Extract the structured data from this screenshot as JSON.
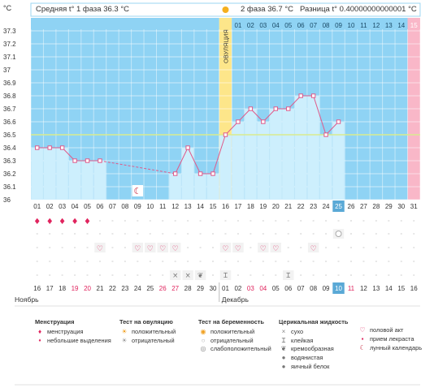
{
  "header": {
    "phase1_label": "Средняя t° 1 фаза",
    "phase1_value": "36.3 °C",
    "phase2_label": "2 фаза",
    "phase2_value": "36.7 °C",
    "diff_label": "Разница t°",
    "diff_value": "0.40000000000001 °C",
    "unit": "°C",
    "ovulation_label": "ОВУЛЯЦИЯ"
  },
  "colors": {
    "phase1_bg": "#8fd3f4",
    "phase2_bg": "#8fd3f4",
    "bar": "#cdeffd",
    "line": "#e05a8a",
    "ovulation": "#fde68a",
    "last_day": "#f9b7c8",
    "coverline": "#d9ec8f",
    "today": "#5aa9d6"
  },
  "chart_data": {
    "type": "line",
    "ylabel": "°C",
    "ylim": [
      36,
      37.3
    ],
    "y_ticks": [
      "37.3",
      "37.2",
      "37.1",
      "37",
      "36.9",
      "36.8",
      "36.7",
      "36.6",
      "36.5",
      "36.4",
      "36.3",
      "36.2",
      "36.1",
      "36"
    ],
    "cycle_days": [
      "01",
      "02",
      "03",
      "04",
      "05",
      "06",
      "07",
      "08",
      "09",
      "10",
      "11",
      "12",
      "13",
      "14",
      "15",
      "16",
      "17",
      "18",
      "19",
      "20",
      "21",
      "22",
      "23",
      "24",
      "25",
      "26",
      "27",
      "28",
      "29",
      "30",
      "31"
    ],
    "phase2_days": [
      "01",
      "02",
      "03",
      "04",
      "05",
      "06",
      "07",
      "08",
      "09",
      "10",
      "11",
      "12",
      "13",
      "14",
      "15"
    ],
    "temperatures": [
      36.4,
      36.4,
      36.4,
      36.3,
      36.3,
      36.3,
      null,
      null,
      null,
      null,
      null,
      36.2,
      36.4,
      36.2,
      36.2,
      36.5,
      36.6,
      36.7,
      36.6,
      36.7,
      36.7,
      36.8,
      36.8,
      36.5,
      36.6,
      null,
      null,
      null,
      null,
      null,
      null
    ],
    "coverline": 36.5,
    "ovulation_day": 16,
    "today_index": 25,
    "moon_day": 9
  },
  "calendar": {
    "month1": "Ноябрь",
    "month2": "Декабрь",
    "dates": [
      "16",
      "17",
      "18",
      "19",
      "20",
      "21",
      "22",
      "23",
      "24",
      "25",
      "26",
      "27",
      "28",
      "29",
      "30",
      "01",
      "02",
      "03",
      "04",
      "05",
      "06",
      "07",
      "08",
      "09",
      "10",
      "11",
      "12",
      "13",
      "14",
      "15",
      "16"
    ],
    "red_dates": [
      3,
      4,
      10,
      11,
      17,
      18,
      24,
      25
    ],
    "today_index": 24
  },
  "rows": {
    "menstruation": [
      1,
      1,
      1,
      1,
      1,
      0,
      0,
      0,
      0,
      0,
      0,
      0,
      0,
      0,
      0,
      0,
      0,
      0,
      0,
      0,
      0,
      0,
      0,
      0,
      0,
      0,
      0,
      0,
      0,
      0,
      0
    ],
    "ovulation_test": [
      0,
      0,
      0,
      0,
      0,
      0,
      0,
      0,
      0,
      0,
      0,
      0,
      0,
      0,
      0,
      0,
      0,
      0,
      0,
      0,
      0,
      0,
      0,
      0,
      1,
      0,
      0,
      0,
      0,
      0,
      0
    ],
    "intercourse": [
      0,
      0,
      0,
      0,
      0,
      1,
      0,
      0,
      1,
      1,
      1,
      1,
      0,
      0,
      0,
      1,
      1,
      0,
      1,
      1,
      0,
      0,
      1,
      0,
      0,
      0,
      0,
      0,
      0,
      0,
      0
    ],
    "mucus": [
      "",
      "",
      "",
      "",
      "",
      "",
      "",
      "",
      "",
      "",
      "",
      "dry",
      "dry",
      "creamy",
      "",
      "sticky",
      "",
      "",
      "",
      "",
      "sticky",
      "",
      "",
      "",
      "",
      "",
      "",
      "",
      "",
      "",
      ""
    ]
  },
  "legend": {
    "menstruation": {
      "title": "Менструация",
      "items": [
        {
          "icon": "drops-icon",
          "label": "менструация"
        },
        {
          "icon": "drop-icon",
          "label": "небольшие выделения"
        }
      ]
    },
    "ovulation_test": {
      "title": "Тест на овуляцию",
      "items": [
        {
          "icon": "sun-positive-icon",
          "label": "положительный"
        },
        {
          "icon": "sun-negative-icon",
          "label": "отрицательный"
        }
      ]
    },
    "pregnancy_test": {
      "title": "Тест на беременность",
      "items": [
        {
          "icon": "circle-positive-icon",
          "label": "положительный"
        },
        {
          "icon": "circle-negative-icon",
          "label": "отрицательный"
        },
        {
          "icon": "circle-weak-icon",
          "label": "слабоположительный"
        }
      ]
    },
    "cervical_fluid": {
      "title": "Церикальная жидкость",
      "items": [
        {
          "icon": "dry-icon",
          "label": "сухо"
        },
        {
          "icon": "sticky-icon",
          "label": "клейкая"
        },
        {
          "icon": "creamy-icon",
          "label": "кремообразная"
        },
        {
          "icon": "watery-icon",
          "label": "водянистая"
        },
        {
          "icon": "egg-white-icon",
          "label": "яичный белок"
        }
      ]
    },
    "other": {
      "title": "",
      "items": [
        {
          "icon": "heart-icon",
          "label": "половой акт"
        },
        {
          "icon": "pill-icon",
          "label": "прием лекраста"
        },
        {
          "icon": "moon-icon",
          "label": "лунный календарь"
        }
      ]
    }
  }
}
